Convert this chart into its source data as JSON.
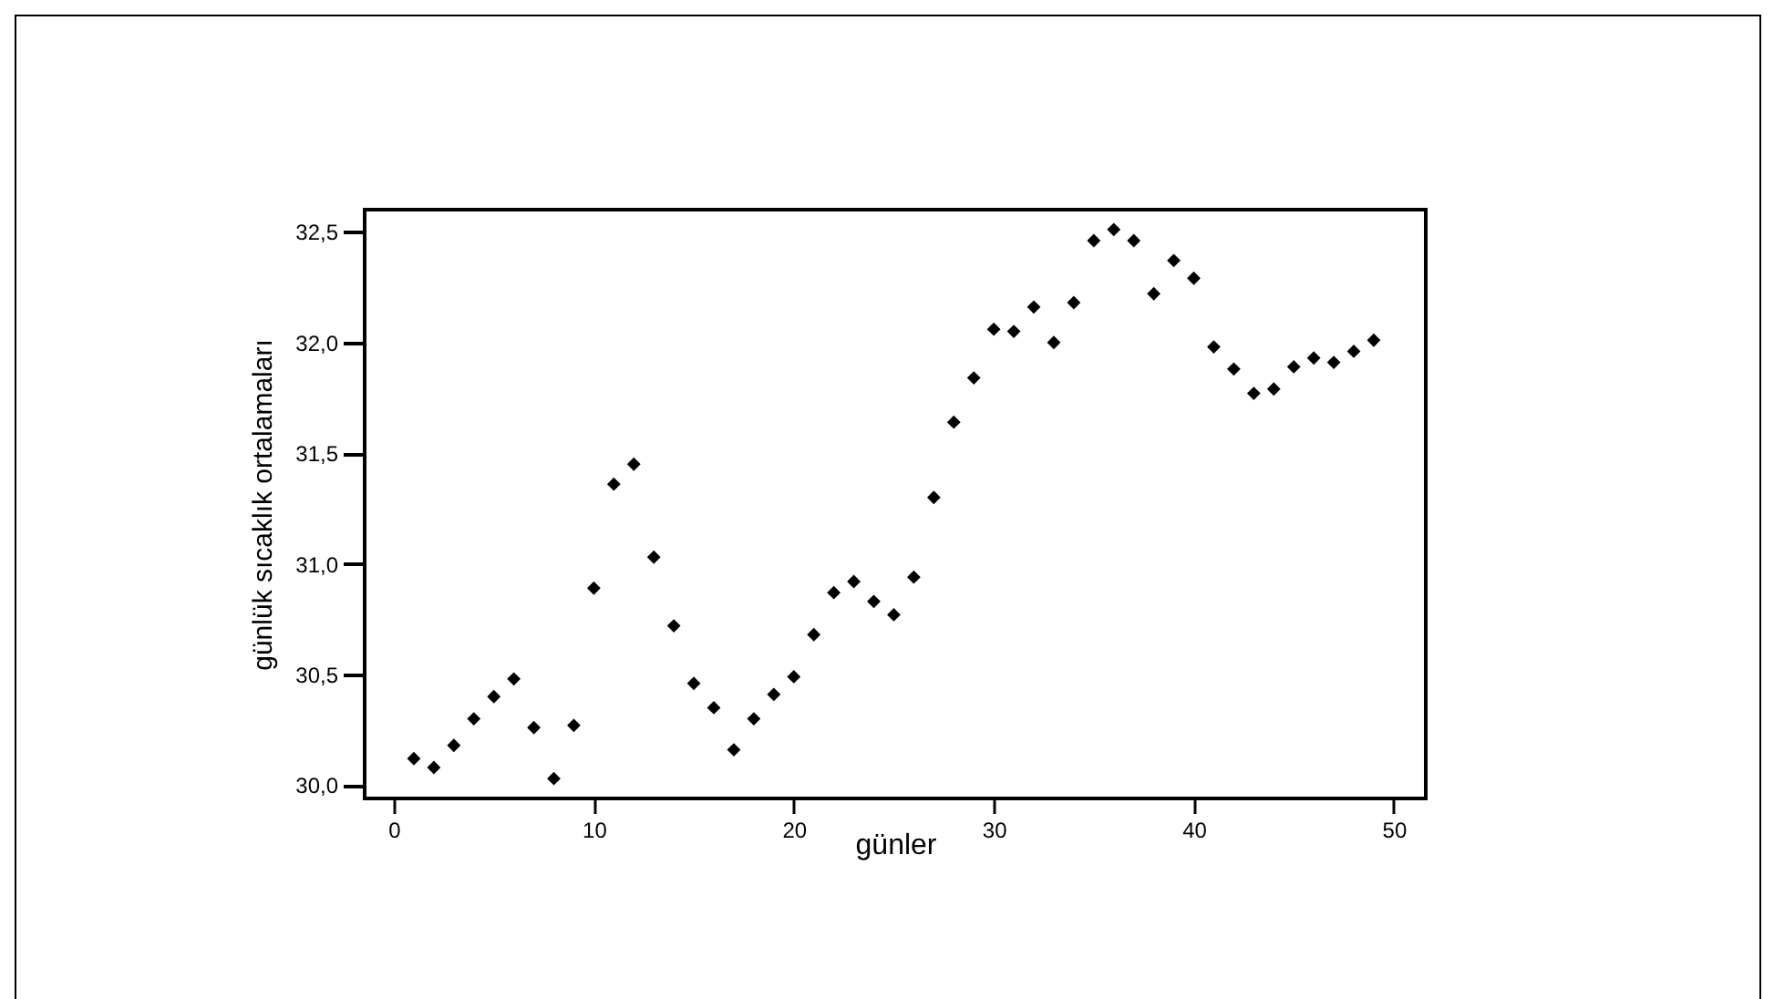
{
  "chart_data": {
    "type": "scatter",
    "xlabel": "günler",
    "ylabel": "günlük sıcaklık ortalamaları",
    "x": [
      1,
      2,
      3,
      4,
      5,
      6,
      7,
      8,
      9,
      10,
      11,
      12,
      13,
      14,
      15,
      16,
      17,
      18,
      19,
      20,
      21,
      22,
      23,
      24,
      25,
      26,
      27,
      28,
      29,
      30,
      31,
      32,
      33,
      34,
      35,
      36,
      37,
      38,
      39,
      40,
      41,
      42,
      43,
      44,
      45,
      46,
      47,
      48,
      49
    ],
    "series": [
      {
        "color": "#000000",
        "values": [
          30.12,
          30.08,
          30.18,
          30.3,
          30.4,
          30.48,
          30.26,
          30.03,
          30.27,
          30.89,
          31.36,
          31.45,
          31.03,
          30.72,
          30.46,
          30.35,
          30.16,
          30.3,
          30.41,
          30.49,
          30.68,
          30.87,
          30.92,
          30.83,
          30.77,
          30.94,
          31.3,
          31.64,
          31.84,
          32.06,
          32.05,
          32.16,
          32.0,
          32.18,
          32.46,
          32.51,
          32.46,
          32.22,
          32.37,
          32.29,
          31.98,
          31.88,
          31.77,
          31.79,
          31.89,
          31.93,
          31.91,
          31.96,
          32.01
        ]
      }
    ],
    "xlim": [
      -1.46,
      51.6
    ],
    "ylim": [
      29.94,
      32.6
    ],
    "xticks": [
      0,
      10,
      20,
      30,
      40,
      50
    ],
    "yticks": [
      {
        "value": 30,
        "label": "30,0"
      },
      {
        "value": 30.5,
        "label": "30,5"
      },
      {
        "value": 31,
        "label": "31,0"
      },
      {
        "value": 31.5,
        "label": "31,5"
      },
      {
        "value": 32,
        "label": "32,0"
      },
      {
        "value": 32.5,
        "label": "32,5"
      }
    ],
    "marker": "diamond",
    "grid": false
  }
}
